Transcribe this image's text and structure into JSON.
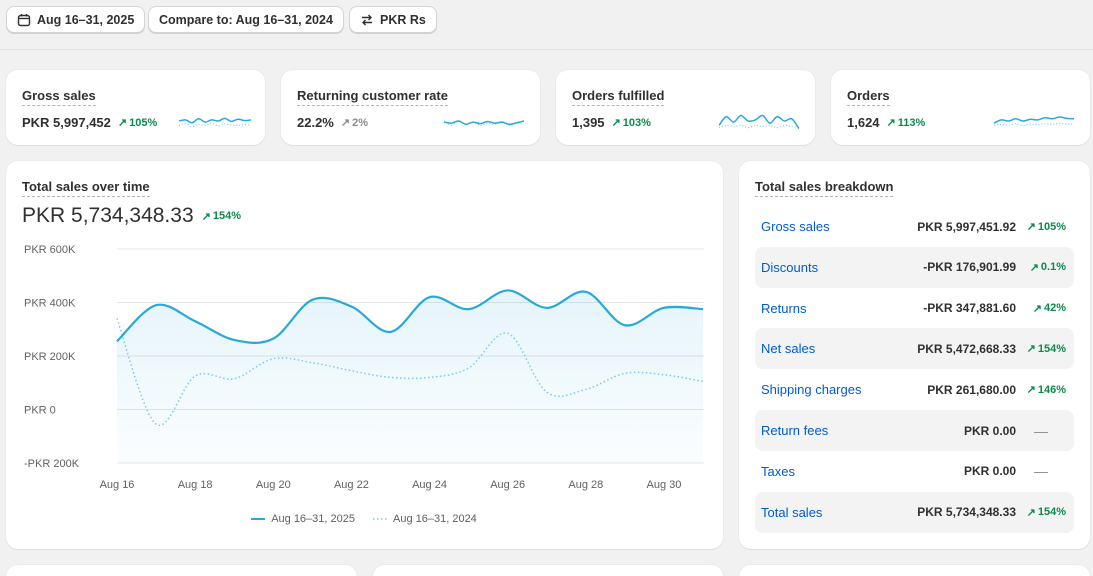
{
  "toolbar": {
    "date_range": "Aug 16–31, 2025",
    "compare": "Compare to: Aug 16–31, 2024",
    "currency": "PKR Rs"
  },
  "kpis": [
    {
      "title": "Gross sales",
      "value": "PKR 5,997,452",
      "delta": "105%",
      "trend": "up"
    },
    {
      "title": "Returning customer rate",
      "value": "22.2%",
      "delta": "2%",
      "trend": "up-neutral"
    },
    {
      "title": "Orders fulfilled",
      "value": "1,395",
      "delta": "103%",
      "trend": "up"
    },
    {
      "title": "Orders",
      "value": "1,624",
      "delta": "113%",
      "trend": "up"
    }
  ],
  "sales_over_time": {
    "title": "Total sales over time",
    "total": "PKR 5,734,348.33",
    "delta": "154%"
  },
  "chart_data": {
    "type": "line",
    "ylim": [
      -200000,
      600000
    ],
    "y_ticks": [
      "PKR 600K",
      "PKR 400K",
      "PKR 200K",
      "PKR 0",
      "-PKR 200K"
    ],
    "x_tick_labels": [
      "Aug 16",
      "Aug 18",
      "Aug 20",
      "Aug 22",
      "Aug 24",
      "Aug 26",
      "Aug 28",
      "Aug 30"
    ],
    "x": [
      "Aug 16",
      "Aug 17",
      "Aug 18",
      "Aug 19",
      "Aug 20",
      "Aug 21",
      "Aug 22",
      "Aug 23",
      "Aug 24",
      "Aug 25",
      "Aug 26",
      "Aug 27",
      "Aug 28",
      "Aug 29",
      "Aug 30",
      "Aug 31"
    ],
    "series": [
      {
        "name": "Aug 16–31, 2025",
        "style": "solid",
        "color": "#29a9d9",
        "values": [
          255000,
          390000,
          330000,
          260000,
          265000,
          410000,
          385000,
          290000,
          420000,
          375000,
          445000,
          380000,
          440000,
          315000,
          380000,
          375000
        ]
      },
      {
        "name": "Aug 16–31, 2024",
        "style": "dotted",
        "color": "#7fc8e6",
        "values": [
          340000,
          -55000,
          125000,
          115000,
          190000,
          175000,
          145000,
          120000,
          120000,
          155000,
          285000,
          65000,
          75000,
          135000,
          130000,
          105000
        ]
      }
    ],
    "legend": "bottom-center",
    "grid": true
  },
  "kpi_sparks": [
    {
      "solid": [
        0.5,
        0.55,
        0.42,
        0.6,
        0.45,
        0.55,
        0.5,
        0.62,
        0.48,
        0.58,
        0.52,
        0.55
      ],
      "dotted": [
        0.3,
        0.38,
        0.25,
        0.35,
        0.3,
        0.4,
        0.28,
        0.36,
        0.32,
        0.3,
        0.34,
        0.3
      ]
    },
    {
      "solid": [
        0.45,
        0.4,
        0.5,
        0.35,
        0.45,
        0.38,
        0.48,
        0.4,
        0.45,
        0.35,
        0.42,
        0.5
      ],
      "dotted": [
        0.55,
        0.3,
        0.5,
        0.35,
        0.45,
        0.3,
        0.4,
        0.35,
        0.45,
        0.3,
        0.4,
        0.35
      ]
    },
    {
      "solid": [
        0.3,
        0.7,
        0.45,
        0.75,
        0.5,
        0.55,
        0.75,
        0.4,
        0.7,
        0.5,
        0.6,
        0.15
      ],
      "dotted": [
        0.2,
        0.3,
        0.25,
        0.3,
        0.2,
        0.3,
        0.25,
        0.3,
        0.2,
        0.3,
        0.25,
        0.2
      ]
    },
    {
      "solid": [
        0.4,
        0.55,
        0.5,
        0.6,
        0.5,
        0.58,
        0.55,
        0.65,
        0.6,
        0.68,
        0.62,
        0.6
      ],
      "dotted": [
        0.3,
        0.35,
        0.32,
        0.38,
        0.3,
        0.36,
        0.34,
        0.38,
        0.35,
        0.4,
        0.36,
        0.34
      ]
    }
  ],
  "breakdown": {
    "title": "Total sales breakdown",
    "rows": [
      {
        "label": "Gross sales",
        "value": "PKR 5,997,451.92",
        "delta": "105%"
      },
      {
        "label": "Discounts",
        "value": "-PKR 176,901.99",
        "delta": "0.1%"
      },
      {
        "label": "Returns",
        "value": "-PKR 347,881.60",
        "delta": "42%"
      },
      {
        "label": "Net sales",
        "value": "PKR 5,472,668.33",
        "delta": "154%"
      },
      {
        "label": "Shipping charges",
        "value": "PKR 261,680.00",
        "delta": "146%"
      },
      {
        "label": "Return fees",
        "value": "PKR 0.00",
        "delta": "—"
      },
      {
        "label": "Taxes",
        "value": "PKR 0.00",
        "delta": "—"
      },
      {
        "label": "Total sales",
        "value": "PKR 5,734,348.33",
        "delta": "154%"
      }
    ]
  },
  "colors": {
    "accent": "#29a9d9",
    "positive": "#0b8a4a",
    "link": "#005bd3"
  }
}
